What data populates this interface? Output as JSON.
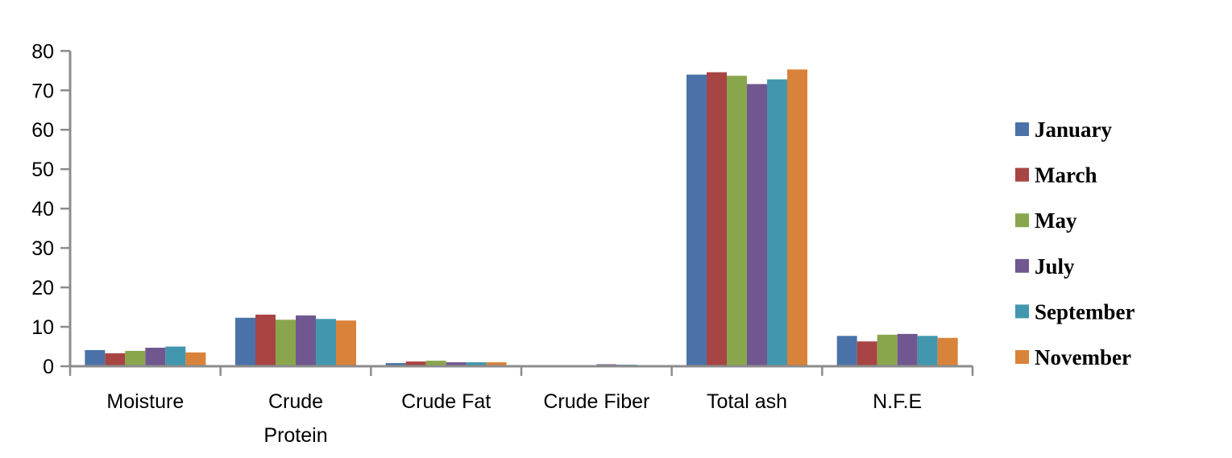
{
  "chart_data": {
    "type": "bar",
    "title": "",
    "xlabel": "",
    "ylabel": "",
    "ylim": [
      0,
      80
    ],
    "yticks": [
      0,
      10,
      20,
      30,
      40,
      50,
      60,
      70,
      80
    ],
    "grid": false,
    "legend_position": "right",
    "categories": [
      "Moisture",
      "Crude Protein",
      "Crude Fat",
      "Crude Fiber",
      "Total ash",
      "N.F.E"
    ],
    "category_label_lines": [
      [
        "Moisture"
      ],
      [
        "Crude",
        "Protein"
      ],
      [
        "Crude Fat"
      ],
      [
        "Crude Fiber"
      ],
      [
        "Total ash"
      ],
      [
        "N.F.E"
      ]
    ],
    "series": [
      {
        "name": "January",
        "color": "#4A72A8",
        "values": [
          4.1,
          12.3,
          0.8,
          0.1,
          74.0,
          7.7
        ]
      },
      {
        "name": "March",
        "color": "#A84544",
        "values": [
          3.3,
          13.1,
          1.2,
          0.3,
          74.6,
          6.3
        ]
      },
      {
        "name": "May",
        "color": "#8AA64D",
        "values": [
          3.9,
          11.8,
          1.4,
          0.1,
          73.7,
          8.0
        ]
      },
      {
        "name": "July",
        "color": "#71578F",
        "values": [
          4.7,
          12.9,
          1.0,
          0.5,
          71.6,
          8.2
        ]
      },
      {
        "name": "September",
        "color": "#4297AE",
        "values": [
          5.0,
          12.0,
          1.0,
          0.4,
          72.8,
          7.7
        ]
      },
      {
        "name": "November",
        "color": "#D98239",
        "values": [
          3.5,
          11.6,
          1.0,
          0.3,
          75.3,
          7.2
        ]
      }
    ]
  },
  "style": {
    "axis_color": "#8C8C8C",
    "background": "#FFFFFF"
  }
}
